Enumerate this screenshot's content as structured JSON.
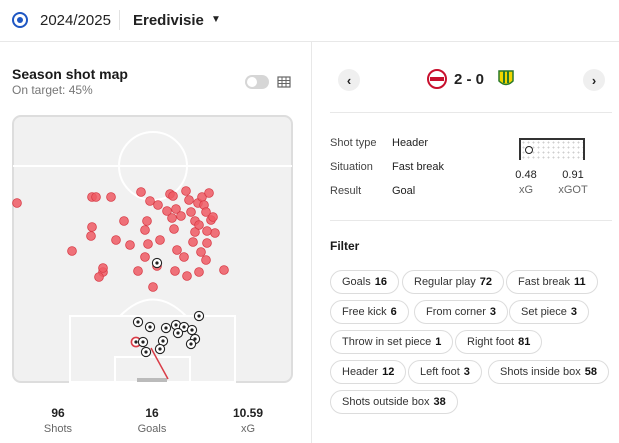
{
  "header": {
    "season": "2024/2025",
    "league": "Eredivisie",
    "icons": {
      "logo": "brand-logo-icon",
      "caret": "caret-down-icon"
    }
  },
  "shotmap": {
    "title": "Season shot map",
    "subtitle": "On target: 45%",
    "toggle_on": false,
    "icons": {
      "toggle": "toggle-switch",
      "grid": "grid-icon"
    }
  },
  "stats": [
    {
      "value": "96",
      "label": "Shots"
    },
    {
      "value": "16",
      "label": "Goals"
    },
    {
      "value": "10.59",
      "label": "xG"
    }
  ],
  "match": {
    "score": "2 - 0",
    "home_badge_color": "#c8102e",
    "away_badge_color": "#f2d600",
    "icons": {
      "prev": "chevron-left-icon",
      "next": "chevron-right-icon"
    }
  },
  "shot_detail": {
    "rows": [
      {
        "label": "Shot type",
        "value": "Header"
      },
      {
        "label": "Situation",
        "value": "Fast break"
      },
      {
        "label": "Result",
        "value": "Goal"
      }
    ],
    "xg": "0.48",
    "xg_label": "xG",
    "xgot": "0.91",
    "xgot_label": "xGOT"
  },
  "filter": {
    "title": "Filter",
    "chips": [
      {
        "label": "Goals",
        "count": "16"
      },
      {
        "label": "Regular play",
        "count": "72"
      },
      {
        "label": "Fast break",
        "count": "11"
      },
      {
        "label": "Free kick",
        "count": "6"
      },
      {
        "label": "From corner",
        "count": "3"
      },
      {
        "label": "Set piece",
        "count": "3"
      },
      {
        "label": "Throw in set piece",
        "count": "1"
      },
      {
        "label": "Right foot",
        "count": "81"
      },
      {
        "label": "Header",
        "count": "12"
      },
      {
        "label": "Left foot",
        "count": "3"
      },
      {
        "label": "Shots inside box",
        "count": "58"
      },
      {
        "label": "Shots outside box",
        "count": "38"
      }
    ]
  },
  "colors": {
    "miss": "#ef5b64",
    "miss_stroke": "#d93c47",
    "pitch_bg": "#f1f1f1",
    "pitch_line": "#ffffff"
  }
}
